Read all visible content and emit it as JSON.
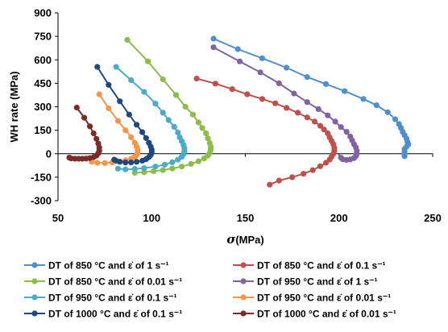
{
  "chart_data": {
    "type": "scatter",
    "xlabel_symbol": "σ",
    "xlabel_unit": "(MPa)",
    "ylabel": "WH rate (MPa)",
    "xlim": [
      50,
      250
    ],
    "ylim": [
      -300,
      900
    ],
    "xticks": [
      50,
      100,
      150,
      200,
      250
    ],
    "yticks": [
      -300,
      -150,
      0,
      150,
      300,
      450,
      600,
      750,
      900
    ],
    "grid": false,
    "legend_position": "bottom",
    "series": [
      {
        "name": "DT of 850 °C and ε̇ of 1 s⁻¹",
        "color": "#4f8fcc",
        "points": [
          [
            133,
            735
          ],
          [
            146,
            668
          ],
          [
            159,
            610
          ],
          [
            172,
            550
          ],
          [
            183,
            490
          ],
          [
            193,
            445
          ],
          [
            203,
            400
          ],
          [
            213,
            350
          ],
          [
            220,
            310
          ],
          [
            226,
            265
          ],
          [
            230,
            220
          ],
          [
            232,
            190
          ],
          [
            233,
            165
          ],
          [
            234,
            140
          ],
          [
            235,
            118
          ],
          [
            236,
            96
          ],
          [
            236.5,
            76
          ],
          [
            237,
            60
          ],
          [
            236,
            45
          ],
          [
            235,
            30
          ],
          [
            235,
            15
          ],
          [
            235,
            0
          ],
          [
            235,
            -15
          ]
        ]
      },
      {
        "name": "DT of 850 °C and ε̇ of 0.1 s⁻¹",
        "color": "#c0504d",
        "points": [
          [
            124,
            480
          ],
          [
            134,
            448
          ],
          [
            143,
            413
          ],
          [
            151,
            380
          ],
          [
            159,
            350
          ],
          [
            166,
            322
          ],
          [
            172,
            293
          ],
          [
            178,
            262
          ],
          [
            183,
            232
          ],
          [
            187,
            205
          ],
          [
            190,
            178
          ],
          [
            192,
            155
          ],
          [
            194,
            130
          ],
          [
            195,
            105
          ],
          [
            196,
            82
          ],
          [
            197,
            60
          ],
          [
            197.5,
            38
          ],
          [
            197.5,
            18
          ],
          [
            197,
            0
          ],
          [
            196,
            -20
          ],
          [
            195,
            -38
          ],
          [
            193,
            -58
          ],
          [
            190,
            -80
          ],
          [
            186,
            -105
          ],
          [
            181,
            -128
          ],
          [
            175,
            -150
          ],
          [
            168,
            -172
          ],
          [
            163,
            -198
          ]
        ]
      },
      {
        "name": "DT of 850 °C and ε̇ of 0.01 s⁻¹",
        "color": "#8cbd4a",
        "points": [
          [
            87,
            728
          ],
          [
            98,
            590
          ],
          [
            106,
            475
          ],
          [
            113,
            375
          ],
          [
            118,
            300
          ],
          [
            122,
            250
          ],
          [
            125,
            200
          ],
          [
            127,
            165
          ],
          [
            129,
            130
          ],
          [
            130,
            98
          ],
          [
            131,
            68
          ],
          [
            131.5,
            45
          ],
          [
            131.5,
            25
          ],
          [
            131,
            5
          ],
          [
            130,
            -12
          ],
          [
            128,
            -30
          ],
          [
            125,
            -48
          ],
          [
            121,
            -65
          ],
          [
            116,
            -82
          ],
          [
            111,
            -95
          ],
          [
            106,
            -105
          ],
          [
            101,
            -112
          ],
          [
            96,
            -118
          ],
          [
            91,
            -122
          ]
        ]
      },
      {
        "name": "DT of 950 °C and ε̇ of 1 s⁻¹",
        "color": "#8064a2",
        "points": [
          [
            133,
            680
          ],
          [
            147,
            590
          ],
          [
            158,
            520
          ],
          [
            168,
            450
          ],
          [
            176,
            385
          ],
          [
            183,
            330
          ],
          [
            189,
            285
          ],
          [
            194,
            245
          ],
          [
            198,
            205
          ],
          [
            201,
            170
          ],
          [
            204,
            140
          ],
          [
            206,
            110
          ],
          [
            207,
            85
          ],
          [
            208,
            60
          ],
          [
            209,
            40
          ],
          [
            209.5,
            20
          ],
          [
            209.5,
            0
          ],
          [
            209,
            -15
          ],
          [
            208,
            -28
          ],
          [
            206,
            -37
          ],
          [
            204,
            -40
          ],
          [
            202,
            -36
          ],
          [
            201,
            -25
          ]
        ]
      },
      {
        "name": "DT of 950 °C and ε̇ of 0.1 s⁻¹",
        "color": "#4aacc6",
        "points": [
          [
            81,
            555
          ],
          [
            89,
            470
          ],
          [
            96,
            395
          ],
          [
            102,
            320
          ],
          [
            106,
            262
          ],
          [
            109,
            215
          ],
          [
            112,
            172
          ],
          [
            114,
            135
          ],
          [
            115,
            105
          ],
          [
            116,
            80
          ],
          [
            117,
            55
          ],
          [
            117.5,
            35
          ],
          [
            117.5,
            15
          ],
          [
            117,
            -3
          ],
          [
            116,
            -20
          ],
          [
            114,
            -38
          ],
          [
            111,
            -55
          ],
          [
            107,
            -70
          ],
          [
            102,
            -82
          ],
          [
            96,
            -92
          ],
          [
            91,
            -97
          ],
          [
            86,
            -100
          ],
          [
            82,
            -95
          ]
        ]
      },
      {
        "name": "DT of 950 °C and ε̇ of 0.01 s⁻¹",
        "color": "#f79646",
        "points": [
          [
            72,
            380
          ],
          [
            77,
            290
          ],
          [
            82,
            210
          ],
          [
            86,
            150
          ],
          [
            89,
            105
          ],
          [
            91,
            70
          ],
          [
            92,
            45
          ],
          [
            92.5,
            25
          ],
          [
            92.5,
            8
          ],
          [
            92,
            -8
          ],
          [
            91,
            -20
          ],
          [
            89,
            -32
          ],
          [
            86,
            -42
          ],
          [
            83,
            -50
          ],
          [
            79,
            -56
          ],
          [
            75,
            -60
          ],
          [
            71,
            -58
          ],
          [
            68,
            -52
          ]
        ]
      },
      {
        "name": "DT of 1000 °C and ε̇ of 0.1 s⁻¹",
        "color": "#1f497d",
        "points": [
          [
            71,
            555
          ],
          [
            77,
            440
          ],
          [
            83,
            335
          ],
          [
            88,
            250
          ],
          [
            92,
            185
          ],
          [
            95,
            138
          ],
          [
            97,
            100
          ],
          [
            98.5,
            70
          ],
          [
            99.5,
            45
          ],
          [
            100,
            25
          ],
          [
            100,
            8
          ],
          [
            99.5,
            -8
          ],
          [
            98.5,
            -22
          ],
          [
            97,
            -35
          ],
          [
            95,
            -45
          ],
          [
            92,
            -52
          ],
          [
            89,
            -56
          ],
          [
            86,
            -56
          ],
          [
            83,
            -52
          ],
          [
            81,
            -45
          ],
          [
            80,
            -38
          ]
        ]
      },
      {
        "name": "DT of 1000 °C and ε̇ of 0.01 s⁻¹",
        "color": "#7b2c26",
        "points": [
          [
            60,
            295
          ],
          [
            64,
            230
          ],
          [
            67,
            175
          ],
          [
            69,
            130
          ],
          [
            70.5,
            95
          ],
          [
            71.5,
            65
          ],
          [
            72,
            40
          ],
          [
            72,
            20
          ],
          [
            71.5,
            3
          ],
          [
            70.5,
            -12
          ],
          [
            69,
            -22
          ],
          [
            67,
            -28
          ],
          [
            65,
            -31
          ],
          [
            63,
            -32
          ],
          [
            61,
            -32
          ],
          [
            59,
            -32
          ],
          [
            57,
            -30
          ],
          [
            56,
            -25
          ]
        ]
      }
    ]
  }
}
